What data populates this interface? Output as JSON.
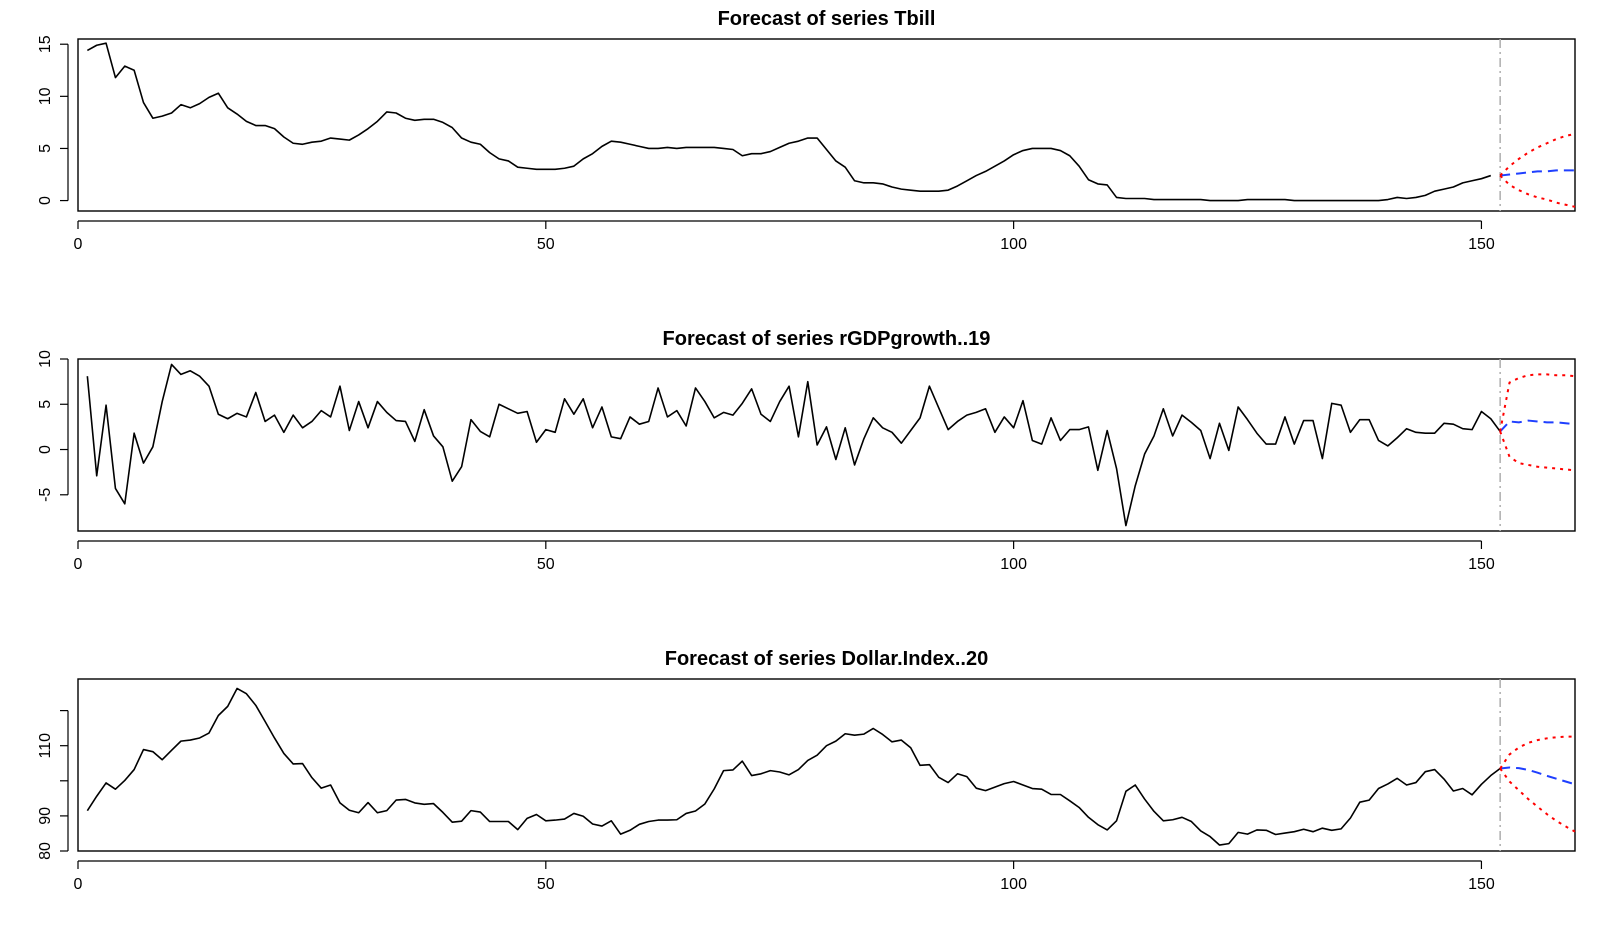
{
  "chart_data": [
    {
      "type": "line",
      "title": "Forecast of series Tbill",
      "xlabel": "",
      "ylabel": "",
      "xlim": [
        0,
        160
      ],
      "ylim": [
        -1,
        15.5
      ],
      "x_ticks": [
        0,
        50,
        100,
        150
      ],
      "y_ticks": [
        0,
        5,
        10,
        15
      ],
      "x_tick_labels": [
        "0",
        "50",
        "100",
        "150"
      ],
      "y_tick_labels": [
        "0",
        "5",
        "10",
        "15"
      ],
      "forecast_origin": 152,
      "series": [
        {
          "role": "observed",
          "color": "#000000",
          "x_start": 1,
          "values": [
            14.4,
            14.9,
            15.1,
            11.8,
            12.9,
            12.5,
            9.4,
            7.9,
            8.1,
            8.4,
            9.2,
            8.9,
            9.3,
            9.9,
            10.3,
            8.9,
            8.3,
            7.6,
            7.2,
            7.2,
            6.9,
            6.1,
            5.5,
            5.4,
            5.6,
            5.7,
            6.0,
            5.9,
            5.8,
            6.3,
            6.9,
            7.6,
            8.5,
            8.4,
            7.9,
            7.7,
            7.8,
            7.8,
            7.5,
            7.0,
            6.0,
            5.6,
            5.4,
            4.6,
            4.0,
            3.8,
            3.2,
            3.1,
            3.0,
            3.0,
            3.0,
            3.1,
            3.3,
            4.0,
            4.5,
            5.2,
            5.7,
            5.6,
            5.4,
            5.2,
            5.0,
            5.0,
            5.1,
            5.0,
            5.1,
            5.1,
            5.1,
            5.1,
            5.0,
            4.9,
            4.3,
            4.5,
            4.5,
            4.7,
            5.1,
            5.5,
            5.7,
            6.0,
            6.0,
            4.9,
            3.8,
            3.2,
            1.9,
            1.7,
            1.7,
            1.6,
            1.3,
            1.1,
            1.0,
            0.9,
            0.9,
            0.9,
            1.0,
            1.4,
            1.9,
            2.4,
            2.8,
            3.3,
            3.8,
            4.4,
            4.8,
            5.0,
            5.0,
            5.0,
            4.8,
            4.3,
            3.3,
            2.0,
            1.6,
            1.5,
            0.3,
            0.2,
            0.2,
            0.2,
            0.1,
            0.1,
            0.1,
            0.1,
            0.1,
            0.1,
            0.0,
            0.0,
            0.0,
            0.0,
            0.1,
            0.1,
            0.1,
            0.1,
            0.1,
            0.0,
            0.0,
            0.0,
            0.0,
            0.0,
            0.0,
            0.0,
            0.0,
            0.0,
            0.0,
            0.1,
            0.3,
            0.2,
            0.3,
            0.5,
            0.9,
            1.1,
            1.3,
            1.7,
            1.9,
            2.1,
            2.4
          ]
        },
        {
          "role": "forecast",
          "color": "#1f3fff",
          "x": [
            152,
            153,
            154,
            155,
            156,
            157,
            158,
            159,
            160
          ],
          "values": [
            2.4,
            2.5,
            2.6,
            2.7,
            2.8,
            2.8,
            2.9,
            2.9,
            2.9
          ]
        },
        {
          "role": "upper",
          "color": "#ff0000",
          "x": [
            152,
            153,
            154,
            155,
            156,
            157,
            158,
            159,
            160
          ],
          "values": [
            2.4,
            3.3,
            4.0,
            4.6,
            5.1,
            5.5,
            5.9,
            6.2,
            6.4
          ]
        },
        {
          "role": "lower",
          "color": "#ff0000",
          "x": [
            152,
            153,
            154,
            155,
            156,
            157,
            158,
            159,
            160
          ],
          "values": [
            2.4,
            1.5,
            1.0,
            0.6,
            0.3,
            0.1,
            -0.2,
            -0.4,
            -0.6
          ]
        }
      ]
    },
    {
      "type": "line",
      "title": "Forecast of series rGDPgrowth..19",
      "xlabel": "",
      "ylabel": "",
      "xlim": [
        0,
        160
      ],
      "ylim": [
        -9,
        10
      ],
      "x_ticks": [
        0,
        50,
        100,
        150
      ],
      "y_ticks": [
        -5,
        0,
        5,
        10
      ],
      "x_tick_labels": [
        "0",
        "50",
        "100",
        "150"
      ],
      "y_tick_labels": [
        "-5",
        "0",
        "5",
        "10"
      ],
      "forecast_origin": 152,
      "series": [
        {
          "role": "observed",
          "color": "#000000",
          "x_start": 1,
          "values": [
            8.1,
            -2.9,
            4.9,
            -4.3,
            -6.0,
            1.8,
            -1.5,
            0.3,
            5.3,
            9.4,
            8.3,
            8.7,
            8.1,
            7.0,
            3.9,
            3.4,
            4.0,
            3.6,
            6.3,
            3.1,
            3.8,
            1.9,
            3.8,
            2.4,
            3.1,
            4.3,
            3.6,
            7.0,
            2.1,
            5.3,
            2.4,
            5.3,
            4.1,
            3.2,
            3.1,
            0.9,
            4.4,
            1.5,
            0.3,
            -3.5,
            -1.9,
            3.3,
            2.0,
            1.4,
            5.0,
            4.5,
            4.0,
            4.2,
            0.8,
            2.2,
            1.9,
            5.6,
            3.9,
            5.6,
            2.4,
            4.7,
            1.4,
            1.2,
            3.6,
            2.8,
            3.1,
            6.8,
            3.6,
            4.3,
            2.6,
            6.8,
            5.3,
            3.5,
            4.1,
            3.8,
            5.1,
            6.7,
            3.9,
            3.1,
            5.3,
            7.0,
            1.4,
            7.5,
            0.5,
            2.5,
            -1.1,
            2.4,
            -1.7,
            1.2,
            3.5,
            2.4,
            1.9,
            0.7,
            2.1,
            3.5,
            7.0,
            4.6,
            2.2,
            3.1,
            3.8,
            4.1,
            4.5,
            1.9,
            3.6,
            2.4,
            5.4,
            1.0,
            0.6,
            3.5,
            1.0,
            2.2,
            2.2,
            2.5,
            -2.3,
            2.1,
            -2.1,
            -8.4,
            -4.0,
            -0.5,
            1.5,
            4.5,
            1.5,
            3.8,
            3.0,
            2.1,
            -1.0,
            2.9,
            -0.1,
            4.7,
            3.3,
            1.8,
            0.6,
            0.6,
            3.6,
            0.6,
            3.2,
            3.2,
            -1.0,
            5.1,
            4.9,
            1.9,
            3.3,
            3.3,
            1.0,
            0.4,
            1.3,
            2.3,
            1.9,
            1.8,
            1.8,
            2.9,
            2.8,
            2.3,
            2.2,
            4.2,
            3.4,
            2.0
          ]
        },
        {
          "role": "forecast",
          "color": "#1f3fff",
          "x": [
            152,
            153,
            154,
            155,
            156,
            157,
            158,
            159,
            160
          ],
          "values": [
            2.0,
            3.1,
            3.0,
            3.2,
            3.1,
            3.0,
            3.0,
            2.9,
            2.8
          ]
        },
        {
          "role": "upper",
          "color": "#ff0000",
          "x": [
            152,
            153,
            154,
            155,
            156,
            157,
            158,
            159,
            160
          ],
          "values": [
            2.0,
            7.4,
            7.9,
            8.2,
            8.3,
            8.3,
            8.2,
            8.2,
            8.1
          ]
        },
        {
          "role": "lower",
          "color": "#ff0000",
          "x": [
            152,
            153,
            154,
            155,
            156,
            157,
            158,
            159,
            160
          ],
          "values": [
            2.0,
            -0.8,
            -1.5,
            -1.7,
            -1.9,
            -2.0,
            -2.1,
            -2.2,
            -2.3
          ]
        }
      ]
    },
    {
      "type": "line",
      "title": "Forecast of series Dollar.Index..20",
      "xlabel": "",
      "ylabel": "",
      "xlim": [
        0,
        160
      ],
      "ylim": [
        80,
        129
      ],
      "x_ticks": [
        0,
        50,
        100,
        150
      ],
      "y_ticks": [
        80,
        90,
        100,
        110,
        120
      ],
      "x_tick_labels": [
        "0",
        "50",
        "100",
        "150"
      ],
      "y_tick_labels": [
        "80",
        "90",
        "",
        "110",
        ""
      ],
      "forecast_origin": 152,
      "series": [
        {
          "role": "observed",
          "color": "#000000",
          "x_start": 1,
          "values": [
            91.5,
            95.6,
            99.4,
            97.6,
            100.1,
            103.2,
            108.9,
            108.3,
            106.0,
            108.7,
            111.3,
            111.6,
            112.2,
            113.6,
            118.6,
            121.2,
            126.3,
            124.8,
            121.5,
            116.9,
            112.2,
            107.8,
            104.8,
            104.9,
            100.9,
            97.9,
            98.8,
            93.7,
            91.6,
            90.9,
            93.8,
            90.9,
            91.5,
            94.5,
            94.7,
            93.7,
            93.3,
            93.5,
            91.0,
            88.2,
            88.5,
            91.5,
            91.1,
            88.4,
            88.4,
            88.4,
            86.1,
            89.3,
            90.4,
            88.6,
            88.8,
            89.1,
            90.7,
            89.9,
            87.7,
            87.1,
            88.6,
            84.8,
            85.9,
            87.6,
            88.4,
            88.8,
            88.8,
            88.9,
            90.7,
            91.4,
            93.4,
            97.7,
            102.9,
            103.1,
            105.6,
            101.5,
            102.0,
            102.9,
            102.5,
            101.7,
            103.2,
            105.8,
            107.3,
            110.0,
            111.3,
            113.4,
            113.0,
            113.3,
            114.9,
            113.2,
            111.1,
            111.6,
            109.4,
            104.4,
            104.6,
            101.0,
            99.5,
            102.0,
            101.2,
            97.9,
            97.2,
            98.2,
            99.2,
            99.8,
            98.8,
            97.8,
            97.6,
            96.1,
            96.1,
            94.3,
            92.4,
            89.6,
            87.5,
            86.0,
            88.6,
            97.0,
            98.8,
            94.8,
            91.3,
            88.6,
            88.9,
            89.6,
            88.4,
            85.7,
            84.1,
            81.7,
            82.1,
            85.3,
            84.8,
            86.0,
            85.9,
            84.7,
            85.1,
            85.5,
            86.2,
            85.5,
            86.5,
            85.9,
            86.3,
            89.4,
            93.9,
            94.5,
            97.8,
            99.1,
            100.7,
            98.8,
            99.5,
            102.6,
            103.2,
            100.5,
            97.1,
            97.8,
            96.0,
            99.0,
            101.5,
            103.5
          ]
        },
        {
          "role": "forecast",
          "color": "#1f3fff",
          "x": [
            152,
            153,
            154,
            155,
            156,
            157,
            158,
            159,
            160
          ],
          "values": [
            103.5,
            103.8,
            103.6,
            103.1,
            102.3,
            101.4,
            100.6,
            99.8,
            99.0
          ]
        },
        {
          "role": "upper",
          "color": "#ff0000",
          "x": [
            152,
            153,
            154,
            155,
            156,
            157,
            158,
            159,
            160
          ],
          "values": [
            103.5,
            107.5,
            109.5,
            110.8,
            111.6,
            112.1,
            112.4,
            112.6,
            112.6
          ]
        },
        {
          "role": "lower",
          "color": "#ff0000",
          "x": [
            152,
            153,
            154,
            155,
            156,
            157,
            158,
            159,
            160
          ],
          "values": [
            103.5,
            99.8,
            97.3,
            94.8,
            92.6,
            90.5,
            88.6,
            87.0,
            85.5
          ]
        }
      ]
    }
  ]
}
